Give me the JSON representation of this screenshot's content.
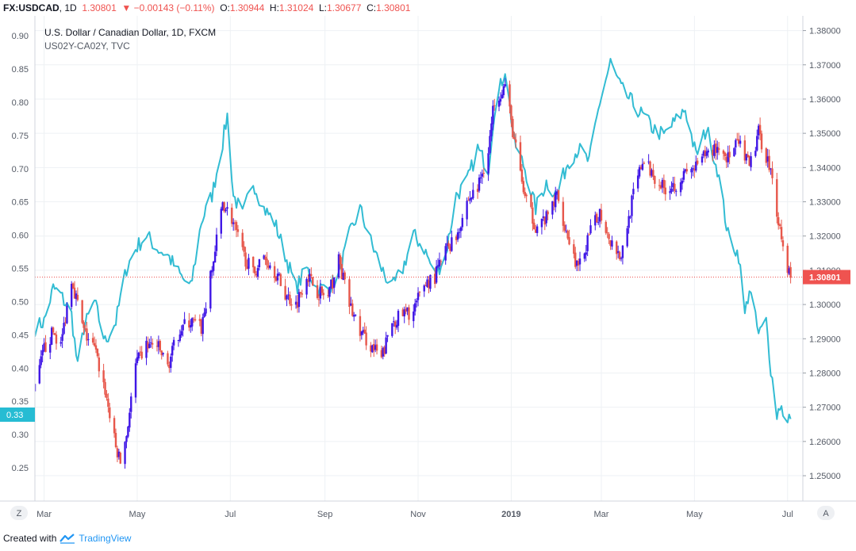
{
  "header": {
    "symbol": "FX:USDCAD",
    "interval": "1D",
    "last": "1.30801",
    "arrow": "▼",
    "change": "−0.00143 (−0.11%)",
    "o_label": "O:",
    "o_val": "1.30944",
    "h_label": "H:",
    "h_val": "1.31024",
    "l_label": "L:",
    "l_val": "1.30677",
    "c_label": "C:",
    "c_val": "1.30801"
  },
  "legend": {
    "title": "U.S. Dollar / Canadian Dollar, 1D, FXCM",
    "subtitle": "US02Y-CA02Y, TVC"
  },
  "buttons": {
    "z": "Z",
    "a": "A"
  },
  "footer": {
    "prefix": "Created with",
    "brand": "TradingView"
  },
  "colors": {
    "up": "#3f16e6",
    "down": "#e7574b",
    "spread": "#32bcd3",
    "spread_badge": "#26bcd3",
    "price_badge": "#ef5350",
    "grid": "#eef1f4",
    "axis_text": "#555b66"
  },
  "chart_data": {
    "type": "line",
    "title": "U.S. Dollar / Canadian Dollar, 1D, FXCM",
    "x_tick_labels": [
      "Mar",
      "May",
      "Jul",
      "Sep",
      "Nov",
      "2019",
      "Mar",
      "May",
      "Jul"
    ],
    "x_tick_dates": [
      "2018-03-01",
      "2018-05-01",
      "2018-07-01",
      "2018-09-01",
      "2018-11-01",
      "2019-01-01",
      "2019-03-01",
      "2019-05-01",
      "2019-07-01"
    ],
    "x_range": [
      "2018-02-23",
      "2019-07-11"
    ],
    "left_axis": {
      "range": [
        0.2,
        0.93
      ],
      "ticks": [
        "0.25",
        "0.30",
        "0.35",
        "0.40",
        "0.45",
        "0.50",
        "0.55",
        "0.60",
        "0.65",
        "0.70",
        "0.75",
        "0.80",
        "0.85",
        "0.90"
      ],
      "last_value": 0.33,
      "last_label": "0.33"
    },
    "right_axis": {
      "range": [
        1.2426,
        1.3843
      ],
      "ticks": [
        "1.25000",
        "1.26000",
        "1.27000",
        "1.28000",
        "1.29000",
        "1.30000",
        "1.31000",
        "1.32000",
        "1.33000",
        "1.34000",
        "1.35000",
        "1.36000",
        "1.37000",
        "1.38000"
      ],
      "last_value": 1.30801,
      "last_label": "1.30801"
    },
    "series": [
      {
        "name": "FX:USDCAD",
        "type": "candlestick",
        "axis": "right",
        "close_path": [
          [
            "2018-02-23",
            1.275
          ],
          [
            "2018-03-01",
            1.287
          ],
          [
            "2018-03-07",
            1.292
          ],
          [
            "2018-03-12",
            1.288
          ],
          [
            "2018-03-19",
            1.308
          ],
          [
            "2018-03-27",
            1.292
          ],
          [
            "2018-04-03",
            1.287
          ],
          [
            "2018-04-10",
            1.275
          ],
          [
            "2018-04-17",
            1.258
          ],
          [
            "2018-04-20",
            1.254
          ],
          [
            "2018-04-24",
            1.262
          ],
          [
            "2018-04-30",
            1.282
          ],
          [
            "2018-05-07",
            1.288
          ],
          [
            "2018-05-14",
            1.288
          ],
          [
            "2018-05-21",
            1.282
          ],
          [
            "2018-05-29",
            1.293
          ],
          [
            "2018-06-05",
            1.295
          ],
          [
            "2018-06-12",
            1.293
          ],
          [
            "2018-06-19",
            1.31
          ],
          [
            "2018-06-26",
            1.33
          ],
          [
            "2018-07-02",
            1.325
          ],
          [
            "2018-07-09",
            1.315
          ],
          [
            "2018-07-16",
            1.309
          ],
          [
            "2018-07-23",
            1.314
          ],
          [
            "2018-07-30",
            1.31
          ],
          [
            "2018-08-06",
            1.303
          ],
          [
            "2018-08-13",
            1.3
          ],
          [
            "2018-08-20",
            1.309
          ],
          [
            "2018-08-27",
            1.304
          ],
          [
            "2018-09-03",
            1.302
          ],
          [
            "2018-09-10",
            1.313
          ],
          [
            "2018-09-17",
            1.3
          ],
          [
            "2018-09-24",
            1.292
          ],
          [
            "2018-10-01",
            1.288
          ],
          [
            "2018-10-08",
            1.284
          ],
          [
            "2018-10-15",
            1.295
          ],
          [
            "2018-10-22",
            1.297
          ],
          [
            "2018-10-29",
            1.298
          ],
          [
            "2018-11-05",
            1.306
          ],
          [
            "2018-11-12",
            1.308
          ],
          [
            "2018-11-19",
            1.316
          ],
          [
            "2018-11-26",
            1.32
          ],
          [
            "2018-12-03",
            1.33
          ],
          [
            "2018-12-10",
            1.334
          ],
          [
            "2018-12-17",
            1.345
          ],
          [
            "2018-12-21",
            1.36
          ],
          [
            "2018-12-28",
            1.364
          ],
          [
            "2019-01-03",
            1.348
          ],
          [
            "2019-01-10",
            1.331
          ],
          [
            "2019-01-17",
            1.323
          ],
          [
            "2019-01-24",
            1.325
          ],
          [
            "2019-01-31",
            1.332
          ],
          [
            "2019-02-07",
            1.32
          ],
          [
            "2019-02-14",
            1.31
          ],
          [
            "2019-02-21",
            1.32
          ],
          [
            "2019-02-28",
            1.327
          ],
          [
            "2019-03-07",
            1.319
          ],
          [
            "2019-03-14",
            1.314
          ],
          [
            "2019-03-21",
            1.33
          ],
          [
            "2019-03-28",
            1.342
          ],
          [
            "2019-04-04",
            1.338
          ],
          [
            "2019-04-11",
            1.334
          ],
          [
            "2019-04-18",
            1.335
          ],
          [
            "2019-04-25",
            1.338
          ],
          [
            "2019-05-02",
            1.34
          ],
          [
            "2019-05-09",
            1.344
          ],
          [
            "2019-05-16",
            1.346
          ],
          [
            "2019-05-23",
            1.343
          ],
          [
            "2019-05-30",
            1.347
          ],
          [
            "2019-06-06",
            1.34
          ],
          [
            "2019-06-12",
            1.35
          ],
          [
            "2019-06-19",
            1.341
          ],
          [
            "2019-06-25",
            1.325
          ],
          [
            "2019-06-29",
            1.314
          ],
          [
            "2019-07-03",
            1.308
          ]
        ]
      },
      {
        "name": "US02Y-CA02Y",
        "type": "line",
        "axis": "left",
        "values": [
          [
            "2018-02-23",
            0.46
          ],
          [
            "2018-03-01",
            0.47
          ],
          [
            "2018-03-07",
            0.52
          ],
          [
            "2018-03-12",
            0.51
          ],
          [
            "2018-03-19",
            0.48
          ],
          [
            "2018-03-23",
            0.4
          ],
          [
            "2018-03-27",
            0.46
          ],
          [
            "2018-04-03",
            0.5
          ],
          [
            "2018-04-10",
            0.44
          ],
          [
            "2018-04-17",
            0.47
          ],
          [
            "2018-04-24",
            0.55
          ],
          [
            "2018-04-30",
            0.58
          ],
          [
            "2018-05-07",
            0.6
          ],
          [
            "2018-05-14",
            0.58
          ],
          [
            "2018-05-21",
            0.57
          ],
          [
            "2018-05-29",
            0.54
          ],
          [
            "2018-06-05",
            0.52
          ],
          [
            "2018-06-12",
            0.62
          ],
          [
            "2018-06-19",
            0.66
          ],
          [
            "2018-06-26",
            0.74
          ],
          [
            "2018-06-29",
            0.78
          ],
          [
            "2018-07-03",
            0.66
          ],
          [
            "2018-07-09",
            0.63
          ],
          [
            "2018-07-16",
            0.68
          ],
          [
            "2018-07-23",
            0.64
          ],
          [
            "2018-07-30",
            0.62
          ],
          [
            "2018-08-06",
            0.57
          ],
          [
            "2018-08-13",
            0.52
          ],
          [
            "2018-08-20",
            0.55
          ],
          [
            "2018-08-27",
            0.52
          ],
          [
            "2018-09-03",
            0.52
          ],
          [
            "2018-09-10",
            0.54
          ],
          [
            "2018-09-17",
            0.6
          ],
          [
            "2018-09-24",
            0.64
          ],
          [
            "2018-10-01",
            0.59
          ],
          [
            "2018-10-08",
            0.55
          ],
          [
            "2018-10-15",
            0.52
          ],
          [
            "2018-10-22",
            0.55
          ],
          [
            "2018-10-29",
            0.6
          ],
          [
            "2018-11-05",
            0.58
          ],
          [
            "2018-11-12",
            0.54
          ],
          [
            "2018-11-19",
            0.57
          ],
          [
            "2018-11-26",
            0.66
          ],
          [
            "2018-12-03",
            0.68
          ],
          [
            "2018-12-10",
            0.73
          ],
          [
            "2018-12-17",
            0.7
          ],
          [
            "2018-12-21",
            0.79
          ],
          [
            "2018-12-28",
            0.85
          ],
          [
            "2019-01-03",
            0.74
          ],
          [
            "2019-01-10",
            0.7
          ],
          [
            "2019-01-17",
            0.64
          ],
          [
            "2019-01-24",
            0.68
          ],
          [
            "2019-01-31",
            0.66
          ],
          [
            "2019-02-07",
            0.71
          ],
          [
            "2019-02-14",
            0.73
          ],
          [
            "2019-02-21",
            0.71
          ],
          [
            "2019-02-28",
            0.8
          ],
          [
            "2019-03-07",
            0.86
          ],
          [
            "2019-03-14",
            0.82
          ],
          [
            "2019-03-21",
            0.8
          ],
          [
            "2019-03-28",
            0.78
          ],
          [
            "2019-04-04",
            0.76
          ],
          [
            "2019-04-11",
            0.75
          ],
          [
            "2019-04-18",
            0.77
          ],
          [
            "2019-04-25",
            0.79
          ],
          [
            "2019-05-02",
            0.72
          ],
          [
            "2019-05-09",
            0.76
          ],
          [
            "2019-05-16",
            0.7
          ],
          [
            "2019-05-23",
            0.6
          ],
          [
            "2019-05-30",
            0.57
          ],
          [
            "2019-06-03",
            0.48
          ],
          [
            "2019-06-06",
            0.52
          ],
          [
            "2019-06-12",
            0.45
          ],
          [
            "2019-06-17",
            0.47
          ],
          [
            "2019-06-20",
            0.4
          ],
          [
            "2019-06-24",
            0.33
          ],
          [
            "2019-06-27",
            0.35
          ],
          [
            "2019-06-29",
            0.3
          ],
          [
            "2019-07-03",
            0.33
          ]
        ]
      }
    ],
    "grid": true,
    "legend_position": "top-left"
  }
}
